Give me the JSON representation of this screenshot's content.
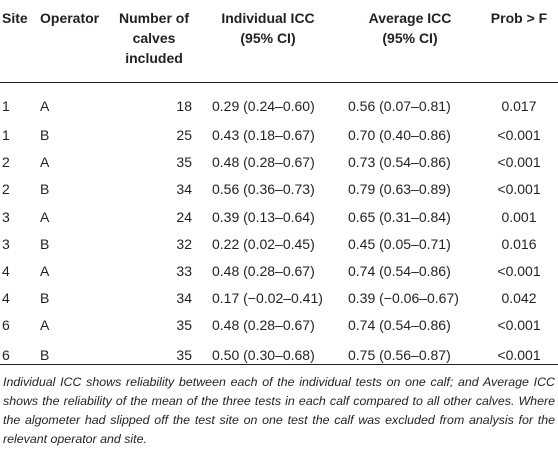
{
  "table": {
    "headers": {
      "site": "Site",
      "operator": "Operator",
      "number_line1": "Number of",
      "number_line2": "calves",
      "number_line3": "included",
      "individual_line1": "Individual ICC",
      "individual_line2": "(95% CI)",
      "average_line1": "Average ICC",
      "average_line2": "(95% CI)",
      "prob": "Prob > F"
    },
    "rows": [
      {
        "site": "1",
        "operator": "A",
        "n": "18",
        "individual": "0.29 (0.24–0.60)",
        "average": "0.56 (0.07–0.81)",
        "prob": "0.017"
      },
      {
        "site": "1",
        "operator": "B",
        "n": "25",
        "individual": "0.43 (0.18–0.67)",
        "average": "0.70 (0.40–0.86)",
        "prob": "<0.001"
      },
      {
        "site": "2",
        "operator": "A",
        "n": "35",
        "individual": "0.48 (0.28–0.67)",
        "average": "0.73 (0.54–0.86)",
        "prob": "<0.001"
      },
      {
        "site": "2",
        "operator": "B",
        "n": "34",
        "individual": "0.56 (0.36–0.73)",
        "average": "0.79 (0.63–0.89)",
        "prob": "<0.001"
      },
      {
        "site": "3",
        "operator": "A",
        "n": "24",
        "individual": "0.39 (0.13–0.64)",
        "average": "0.65 (0.31–0.84)",
        "prob": "0.001"
      },
      {
        "site": "3",
        "operator": "B",
        "n": "32",
        "individual": "0.22 (0.02–0.45)",
        "average": "0.45 (0.05–0.71)",
        "prob": "0.016"
      },
      {
        "site": "4",
        "operator": "A",
        "n": "33",
        "individual": "0.48 (0.28–0.67)",
        "average": "0.74 (0.54–0.86)",
        "prob": "<0.001"
      },
      {
        "site": "4",
        "operator": "B",
        "n": "34",
        "individual": "0.17 (−0.02–0.41)",
        "average": "0.39 (−0.06–0.67)",
        "prob": "0.042"
      },
      {
        "site": "6",
        "operator": "A",
        "n": "35",
        "individual": "0.48 (0.28–0.67)",
        "average": "0.74 (0.54–0.86)",
        "prob": "<0.001"
      },
      {
        "site": "6",
        "operator": "B",
        "n": "35",
        "individual": "0.50 (0.30–0.68)",
        "average": "0.75 (0.56–0.87)",
        "prob": "<0.001"
      }
    ]
  },
  "footnote": "Individual ICC shows reliability between each of the individual tests on one calf; and Average ICC shows the reliability of the mean of the three tests in each calf compared to all other calves. Where the algometer had slipped off the test site on one test the calf was excluded from analysis for the relevant operator and site."
}
